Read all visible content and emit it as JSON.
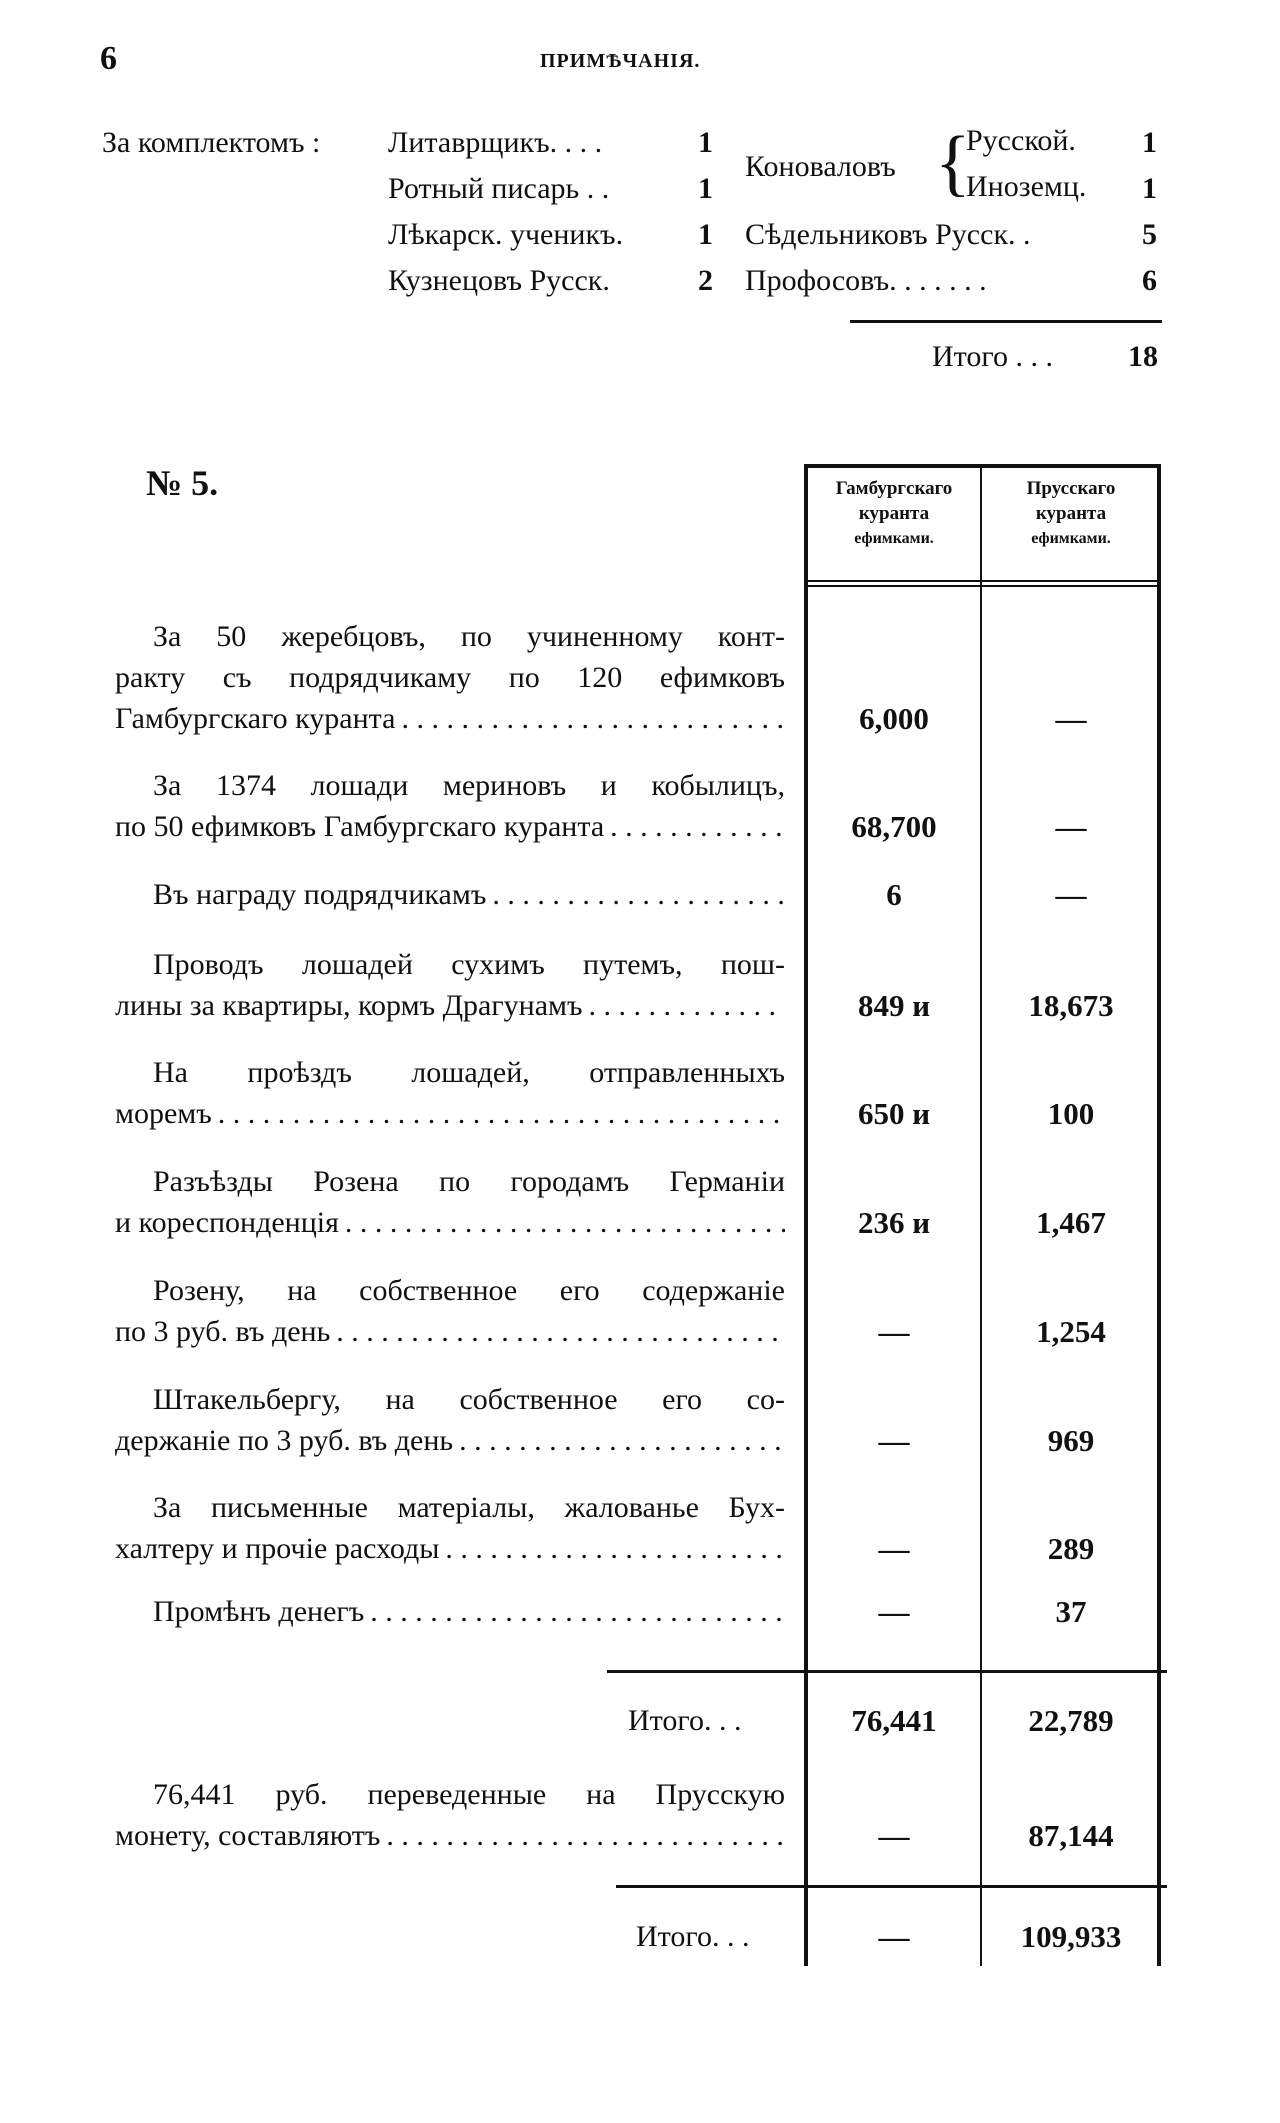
{
  "page_number": "6",
  "running_head": "ПРИМѢЧАНІЯ.",
  "complement": {
    "label": "За комплектомъ :",
    "left": [
      {
        "name": "Литаврщикъ. . . .",
        "count": "1"
      },
      {
        "name": "Ротный писарь . .",
        "count": "1"
      },
      {
        "name": "Лѣкарск. ученикъ.",
        "count": "1"
      },
      {
        "name": "Кузнецовъ  Русск.",
        "count": "2"
      }
    ],
    "farriers_label": "Коноваловъ",
    "farriers": [
      {
        "name": "Русской.",
        "count": "1"
      },
      {
        "name": "Иноземц.",
        "count": "1"
      }
    ],
    "right": [
      {
        "name": "Сѣдельниковъ Русск. .",
        "count": "5"
      },
      {
        "name": "Профосовъ. . . . . . .",
        "count": "6"
      }
    ],
    "total_label": "Итого . . .",
    "total": "18"
  },
  "section_number": "№ 5.",
  "table": {
    "headers": [
      "Гамбургскаго куранта ефимками.",
      "Прусскаго куранта ефимками."
    ],
    "header_lines": [
      [
        "Гамбургскаго",
        "куранта",
        "ефимками."
      ],
      [
        "Прусскаго",
        "куранта",
        "ефимками."
      ]
    ],
    "rows": [
      {
        "lines": [
          "За 50 жеребцовъ, по учиненному конт-",
          "ракту съ подрядчикаму по 120 ефимковъ",
          "Гамбургскаго куранта"
        ],
        "hamburg": "6,000",
        "prussian": "—"
      },
      {
        "lines": [
          "За 1374 лошади мериновъ и кобылицъ,",
          "по 50 ефимковъ Гамбургскаго куранта"
        ],
        "hamburg": "68,700",
        "prussian": "—"
      },
      {
        "lines": [
          "Въ награду подрядчикамъ"
        ],
        "hamburg": "6",
        "prussian": "—"
      },
      {
        "lines": [
          "Проводъ лошадей сухимъ путемъ, пош-",
          "лины за квартиры, кормъ Драгунамъ"
        ],
        "hamburg": "849 и",
        "prussian": "18,673"
      },
      {
        "lines": [
          "На проѣздъ лошадей, отправленныхъ",
          "моремъ"
        ],
        "hamburg": "650 и",
        "prussian": "100"
      },
      {
        "lines": [
          "Разъѣзды Розена по городамъ Германіи",
          "и кореспонденція"
        ],
        "hamburg": "236 и",
        "prussian": "1,467"
      },
      {
        "lines": [
          "Розену, на собственное его содержаніе",
          "по 3 руб. въ день"
        ],
        "hamburg": "—",
        "prussian": "1,254"
      },
      {
        "lines": [
          "Штакельбергу, на собственное его со-",
          "держаніе по 3 руб. въ день"
        ],
        "hamburg": "—",
        "prussian": "969"
      },
      {
        "lines": [
          "За письменные матеріалы, жалованье Бух-",
          "халтеру и прочіе расходы"
        ],
        "hamburg": "—",
        "prussian": "289"
      },
      {
        "lines": [
          "Промѣнъ денегъ"
        ],
        "hamburg": "—",
        "prussian": "37"
      }
    ],
    "subtotal": {
      "label": "Итого. . .",
      "hamburg": "76,441",
      "prussian": "22,789"
    },
    "conversion": {
      "lines": [
        "76,441 руб. переведенные на Прусскую",
        "монету, составляютъ"
      ],
      "hamburg": "—",
      "prussian": "87,144"
    },
    "total": {
      "label": "Итого. . .",
      "hamburg": "—",
      "prussian": "109,933"
    }
  }
}
